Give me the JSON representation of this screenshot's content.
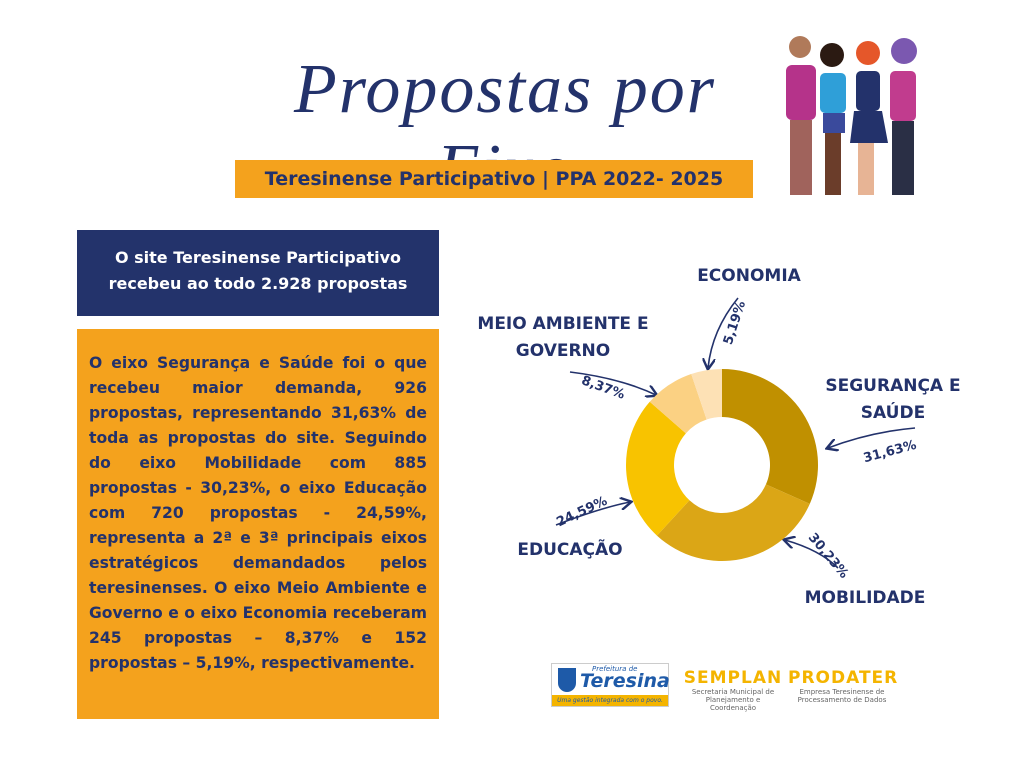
{
  "header": {
    "title": "Propostas por Eixo",
    "subtitle": "Teresinense Participativo | PPA 2022- 2025"
  },
  "summary": "O site Teresinense Participativo recebeu ao todo 2.928 propostas",
  "body": "O eixo Segurança e Saúde foi o que recebeu maior demanda, 926 propostas, representando 31,63% de toda as propostas do site. Seguindo do eixo Mobilidade com 885 propostas - 30,23%, o eixo Educação com 720 propostas - 24,59%, representa a 2ª e 3ª principais eixos estratégicos demandados pelos teresinenses. O eixo Meio Ambiente e Governo e o eixo Economia receberam 245 propostas – 8,37% e 152 propostas – 5,19%, respectivamente.",
  "chart_data": {
    "type": "donut",
    "categories": [
      "SEGURANÇA E SAÚDE",
      "MOBILIDADE",
      "EDUCAÇÃO",
      "MEIO AMBIENTE E GOVERNO",
      "ECONOMIA"
    ],
    "values": [
      31.63,
      30.23,
      24.59,
      8.37,
      5.19
    ],
    "value_labels": [
      "31,63%",
      "30,23%",
      "24,59%",
      "8,37%",
      "5,19%"
    ],
    "colors": [
      "#c09000",
      "#dba616",
      "#f8c300",
      "#fbd183",
      "#fde1b5"
    ]
  },
  "footer": {
    "city_top": "Prefeitura de",
    "city": "Teresina",
    "city_slogan": "Uma gestão integrada com o povo.",
    "org1": "SEMPLAN",
    "org1_desc": "Secretaria Municipal de Planejamento e Coordenação",
    "org2": "PRODATER",
    "org2_desc": "Empresa Teresinense de Processamento de Dados"
  }
}
